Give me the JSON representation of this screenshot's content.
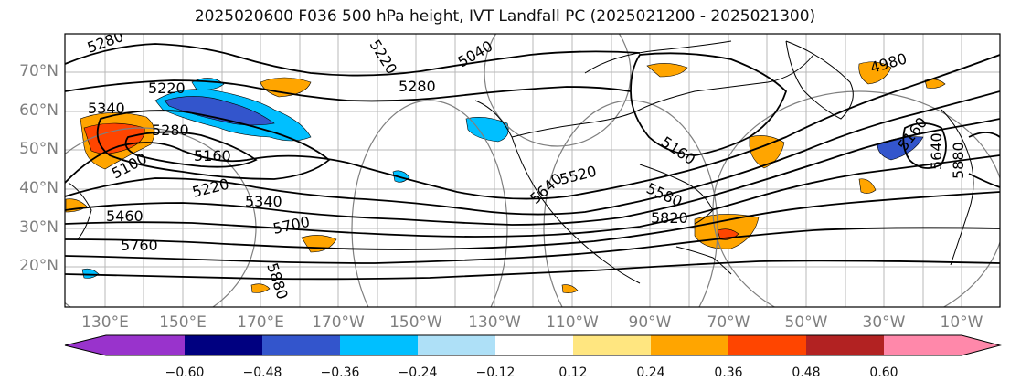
{
  "title": "2025020600 F036 500 hPa height, IVT Landfall PC (2025021200 - 2025021300)",
  "lat_labels": [
    "70°N",
    "60°N",
    "50°N",
    "40°N",
    "30°N",
    "20°N"
  ],
  "lon_labels": [
    "130°E",
    "150°E",
    "170°E",
    "170°W",
    "150°W",
    "130°W",
    "110°W",
    "90°W",
    "70°W",
    "50°W",
    "30°W",
    "10°W"
  ],
  "contour_labels": [
    "5280",
    "5220",
    "5340",
    "5280",
    "5100",
    "5160",
    "5220",
    "5340",
    "5460",
    "5760",
    "5700",
    "5880",
    "5220",
    "5280",
    "5040",
    "5520",
    "5640",
    "5160",
    "5580",
    "5820",
    "4980",
    "5160",
    "5640",
    "5880"
  ],
  "colorbar": {
    "ticks": [
      "−0.60",
      "−0.48",
      "−0.36",
      "−0.24",
      "−0.12",
      "0.12",
      "0.24",
      "0.36",
      "0.48",
      "0.60"
    ],
    "colors": [
      "#9933cc",
      "#000080",
      "#3355cc",
      "#00bfff",
      "#aee0f7",
      "#ffffff",
      "#ffe680",
      "#ffa500",
      "#ff4500",
      "#b22222",
      "#ff88aa",
      "#ff88aa"
    ]
  },
  "colors": {
    "contour": "#000000",
    "graticule": "#b0b0b0",
    "coast": "#000000",
    "circle": "#808080"
  }
}
